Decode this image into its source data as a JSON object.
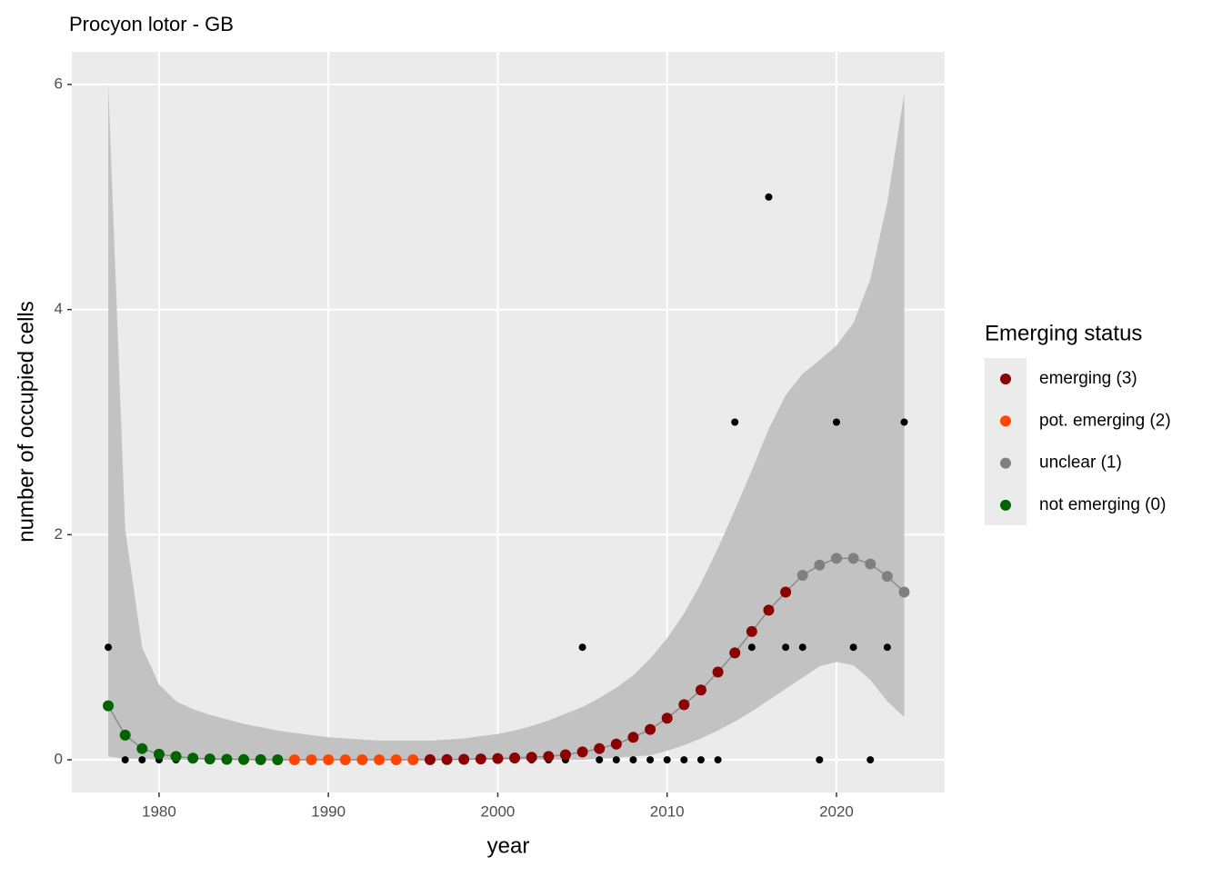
{
  "chart_data": {
    "type": "line",
    "title": "Procyon lotor - GB",
    "x_label": "year",
    "y_label": "number of occupied cells",
    "legend_title": "Emerging status",
    "legend_position": "right",
    "grid": true,
    "xlim": [
      1974.85,
      2026.39
    ],
    "ylim": [
      -0.29,
      6.29
    ],
    "xticks": [
      1980,
      1990,
      2000,
      2010,
      2020
    ],
    "yticks": [
      0,
      2,
      4,
      6
    ],
    "x": [
      1977,
      1978,
      1979,
      1980,
      1981,
      1982,
      1983,
      1984,
      1985,
      1986,
      1987,
      1988,
      1989,
      1990,
      1991,
      1992,
      1993,
      1994,
      1995,
      1996,
      1997,
      1998,
      1999,
      2000,
      2001,
      2002,
      2003,
      2004,
      2005,
      2006,
      2007,
      2008,
      2009,
      2010,
      2011,
      2012,
      2013,
      2014,
      2015,
      2016,
      2017,
      2018,
      2019,
      2020,
      2021,
      2022,
      2023,
      2024
    ],
    "ribbon": {
      "color": "#c2c2c2",
      "upper": [
        6.0,
        2.05,
        1.0,
        0.67,
        0.52,
        0.45,
        0.4,
        0.36,
        0.32,
        0.29,
        0.26,
        0.24,
        0.22,
        0.2,
        0.19,
        0.18,
        0.17,
        0.17,
        0.17,
        0.17,
        0.18,
        0.19,
        0.21,
        0.23,
        0.26,
        0.3,
        0.35,
        0.41,
        0.47,
        0.55,
        0.64,
        0.75,
        0.9,
        1.08,
        1.3,
        1.57,
        1.88,
        2.22,
        2.57,
        2.94,
        3.24,
        3.43,
        3.55,
        3.68,
        3.88,
        4.27,
        4.95,
        5.92
      ],
      "lower": [
        0.03,
        0.01,
        0.01,
        0,
        0,
        0,
        0,
        0,
        0,
        0,
        0,
        0,
        0,
        0,
        0,
        0,
        0,
        0,
        0,
        0,
        0,
        0,
        0,
        0,
        0,
        0,
        0,
        0,
        0,
        0.01,
        0.02,
        0.03,
        0.04,
        0.08,
        0.13,
        0.19,
        0.26,
        0.34,
        0.43,
        0.53,
        0.63,
        0.73,
        0.83,
        0.87,
        0.84,
        0.71,
        0.52,
        0.38
      ]
    },
    "observed": {
      "color": "#000000",
      "values": [
        1,
        0,
        0,
        0,
        0,
        0,
        0,
        0,
        0,
        0,
        0,
        0,
        0,
        0,
        0,
        0,
        0,
        0,
        0,
        0,
        0,
        0,
        0,
        0,
        0,
        0,
        0,
        0,
        1,
        0,
        0,
        0,
        0,
        0,
        0,
        0,
        0,
        3,
        1,
        5,
        1,
        1,
        0,
        3,
        1,
        0,
        1,
        3
      ]
    },
    "line_color": "#8a8a8a",
    "series": [
      {
        "name": "emerging (3)",
        "color": "#8b0000",
        "values": [
          null,
          null,
          null,
          null,
          null,
          null,
          null,
          null,
          null,
          null,
          null,
          null,
          null,
          null,
          null,
          null,
          null,
          null,
          null,
          0.002,
          0.003,
          0.005,
          0.008,
          0.012,
          0.017,
          0.023,
          0.03,
          0.045,
          0.07,
          0.1,
          0.14,
          0.2,
          0.27,
          0.37,
          0.49,
          0.62,
          0.78,
          0.95,
          1.14,
          1.33,
          1.49,
          null,
          null,
          null,
          null,
          null,
          null,
          null
        ]
      },
      {
        "name": "pot. emerging (2)",
        "color": "#ff4500",
        "values": [
          null,
          null,
          null,
          null,
          null,
          null,
          null,
          null,
          null,
          null,
          null,
          0.001,
          0.001,
          0.001,
          0.001,
          0.001,
          0.001,
          0.001,
          0.001,
          null,
          null,
          null,
          null,
          null,
          null,
          null,
          null,
          null,
          null,
          null,
          null,
          null,
          null,
          null,
          null,
          null,
          null,
          null,
          null,
          null,
          null,
          null,
          null,
          null,
          null,
          null,
          null,
          null
        ]
      },
      {
        "name": "unclear (1)",
        "color": "#808080",
        "values": [
          null,
          null,
          null,
          null,
          null,
          null,
          null,
          null,
          null,
          null,
          null,
          null,
          null,
          null,
          null,
          null,
          null,
          null,
          null,
          null,
          null,
          null,
          null,
          null,
          null,
          null,
          null,
          null,
          null,
          null,
          null,
          null,
          null,
          null,
          null,
          null,
          null,
          null,
          null,
          null,
          null,
          1.64,
          1.73,
          1.79,
          1.79,
          1.74,
          1.63,
          1.49
        ]
      },
      {
        "name": "not emerging (0)",
        "color": "#006400",
        "values": [
          0.48,
          0.22,
          0.1,
          0.05,
          0.03,
          0.015,
          0.008,
          0.005,
          0.003,
          0.002,
          0.001,
          null,
          null,
          null,
          null,
          null,
          null,
          null,
          null,
          null,
          null,
          null,
          null,
          null,
          null,
          null,
          null,
          null,
          null,
          null,
          null,
          null,
          null,
          null,
          null,
          null,
          null,
          null,
          null,
          null,
          null,
          null,
          null,
          null,
          null,
          null,
          null,
          null
        ]
      }
    ]
  }
}
